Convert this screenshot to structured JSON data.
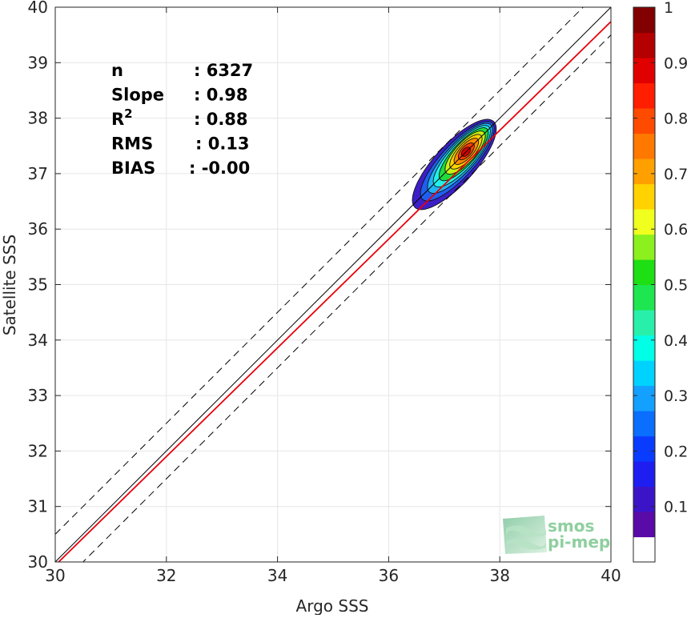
{
  "chart_data": {
    "type": "heatmap",
    "subtype": "density-contour-scatter",
    "xlabel": "Argo SSS",
    "ylabel": "Satellite SSS",
    "xlim": [
      30,
      40
    ],
    "ylim": [
      30,
      40
    ],
    "xticks": [
      30,
      32,
      34,
      36,
      38,
      40
    ],
    "yticks": [
      30,
      31,
      32,
      33,
      34,
      35,
      36,
      37,
      38,
      39,
      40
    ],
    "grid": true,
    "stats": [
      {
        "label": "n",
        "value": ": 6327"
      },
      {
        "label": "Slope",
        "value": ": 0.98"
      },
      {
        "label": "R",
        "sup": "2",
        "value": ": 0.88"
      },
      {
        "label": "RMS",
        "value": ": 0.13"
      },
      {
        "label": "BIAS",
        "value": ": -0.00"
      }
    ],
    "lines": [
      {
        "role": "identity",
        "slope": 1,
        "intercept": 0,
        "color": "#000000",
        "dash": false
      },
      {
        "role": "upper-bound",
        "slope": 1,
        "intercept": 0.5,
        "color": "#000000",
        "dash": true
      },
      {
        "role": "lower-bound",
        "slope": 1,
        "intercept": -0.5,
        "color": "#000000",
        "dash": true
      },
      {
        "role": "regression",
        "slope": 0.98,
        "intercept": 0.54,
        "color": "#e8000b",
        "dash": false
      }
    ],
    "density": {
      "center": [
        37.35,
        37.35
      ],
      "axis_direction": [
        1,
        1.1
      ],
      "levels": [
        {
          "level": 0.05,
          "color": "#3d1fc8",
          "a": 1.05,
          "b": 0.36,
          "shift": -0.25
        },
        {
          "level": 0.15,
          "color": "#1f5ff0",
          "a": 0.93,
          "b": 0.3,
          "shift": -0.17
        },
        {
          "level": 0.25,
          "color": "#1fb4f5",
          "a": 0.82,
          "b": 0.26,
          "shift": -0.1
        },
        {
          "level": 0.35,
          "color": "#20f0ea",
          "a": 0.72,
          "b": 0.23,
          "shift": -0.05
        },
        {
          "level": 0.45,
          "color": "#1fdc3c",
          "a": 0.62,
          "b": 0.2,
          "shift": 0
        },
        {
          "level": 0.55,
          "color": "#c8f014",
          "a": 0.5,
          "b": 0.18,
          "shift": 0.04
        },
        {
          "level": 0.65,
          "color": "#ffd200",
          "a": 0.4,
          "b": 0.15,
          "shift": 0.06
        },
        {
          "level": 0.75,
          "color": "#ff8c00",
          "a": 0.3,
          "b": 0.12,
          "shift": 0.07
        },
        {
          "level": 0.85,
          "color": "#ff3c00",
          "a": 0.19,
          "b": 0.09,
          "shift": 0.07
        },
        {
          "level": 0.95,
          "color": "#d20000",
          "a": 0.1,
          "b": 0.06,
          "shift": 0.06
        }
      ]
    },
    "colorbar": {
      "ticks": [
        0.1,
        0.2,
        0.3,
        0.4,
        0.5,
        0.6,
        0.7,
        0.8,
        0.9,
        1
      ],
      "tick_labels": [
        "0.1",
        "0.2",
        "0.3",
        "0.4",
        "0.5",
        "0.6",
        "0.7",
        "0.8",
        "0.9",
        "1"
      ],
      "range": [
        0,
        1
      ],
      "colors": [
        "#ffffff",
        "#5a0aa6",
        "#3c14c8",
        "#1e1ef0",
        "#0a3cff",
        "#0a6eff",
        "#14a0ff",
        "#00d2ff",
        "#00ffe6",
        "#28f0aa",
        "#1ee650",
        "#1ede14",
        "#8cf01e",
        "#f0ff1e",
        "#ffd200",
        "#ffa000",
        "#ff7800",
        "#ff4b00",
        "#ff1e00",
        "#e10000",
        "#b40000",
        "#820000"
      ]
    }
  },
  "watermark": {
    "line1": "smos",
    "line2": "pi-mep"
  },
  "colors": {
    "axis": "#262626",
    "grid": "#e6e6e6",
    "regression": "#e8000b",
    "watermark": "#8fcf9f"
  }
}
